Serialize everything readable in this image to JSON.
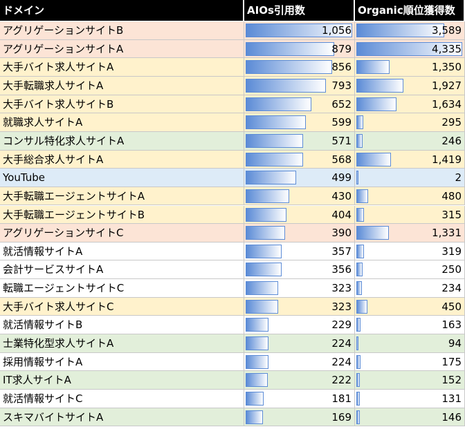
{
  "table": {
    "headers": [
      "ドメイン",
      "AIOs引用数",
      "Organic順位獲得数"
    ],
    "domains": [
      "アグリゲーションサイトB",
      "アグリゲーションサイトA",
      "大手バイト求人サイトA",
      "大手転職求人サイトA",
      "大手バイト求人サイトB",
      "就職求人サイトA",
      "コンサル特化求人サイトA",
      "大手総合求人サイトA",
      "YouTube",
      "大手転職エージェントサイトA",
      "大手転職エージェントサイトB",
      "アグリゲーションサイトC",
      "就活情報サイトA",
      "会計サービスサイトA",
      "転職エージェントサイトC",
      "大手バイト求人サイトC",
      "就活情報サイトB",
      "士業特化型求人サイトA",
      "採用情報サイトA",
      "IT求人サイトA",
      "就活情報サイトC",
      "スキマバイトサイトA"
    ],
    "row_colors": [
      "#fce4d6",
      "#fce4d6",
      "#fff2cc",
      "#fff2cc",
      "#fff2cc",
      "#fff2cc",
      "#e2efda",
      "#fff2cc",
      "#ddebf7",
      "#fff2cc",
      "#fff2cc",
      "#fce4d6",
      "#ffffff",
      "#ffffff",
      "#ffffff",
      "#fff2cc",
      "#ffffff",
      "#e2efda",
      "#ffffff",
      "#e2efda",
      "#ffffff",
      "#e2efda"
    ],
    "aio": {
      "values": [
        1056,
        879,
        856,
        793,
        652,
        599,
        571,
        568,
        499,
        430,
        404,
        390,
        357,
        356,
        323,
        323,
        229,
        224,
        224,
        222,
        181,
        169
      ],
      "value_labels": [
        "1,056",
        "879",
        "856",
        "793",
        "652",
        "599",
        "571",
        "568",
        "499",
        "430",
        "404",
        "390",
        "357",
        "356",
        "323",
        "323",
        "229",
        "224",
        "224",
        "222",
        "181",
        "169"
      ]
    },
    "organic": {
      "values": [
        3589,
        4335,
        1350,
        1927,
        1634,
        295,
        246,
        1419,
        2,
        480,
        315,
        1331,
        319,
        250,
        234,
        450,
        163,
        94,
        175,
        152,
        131,
        146
      ],
      "value_labels": [
        "3,589",
        "4,335",
        "1,350",
        "1,927",
        "1,634",
        "295",
        "246",
        "1,419",
        "2",
        "480",
        "315",
        "1,331",
        "319",
        "250",
        "234",
        "450",
        "163",
        "94",
        "175",
        "152",
        "131",
        "146"
      ]
    },
    "bar_color": "#5b8bd6"
  }
}
